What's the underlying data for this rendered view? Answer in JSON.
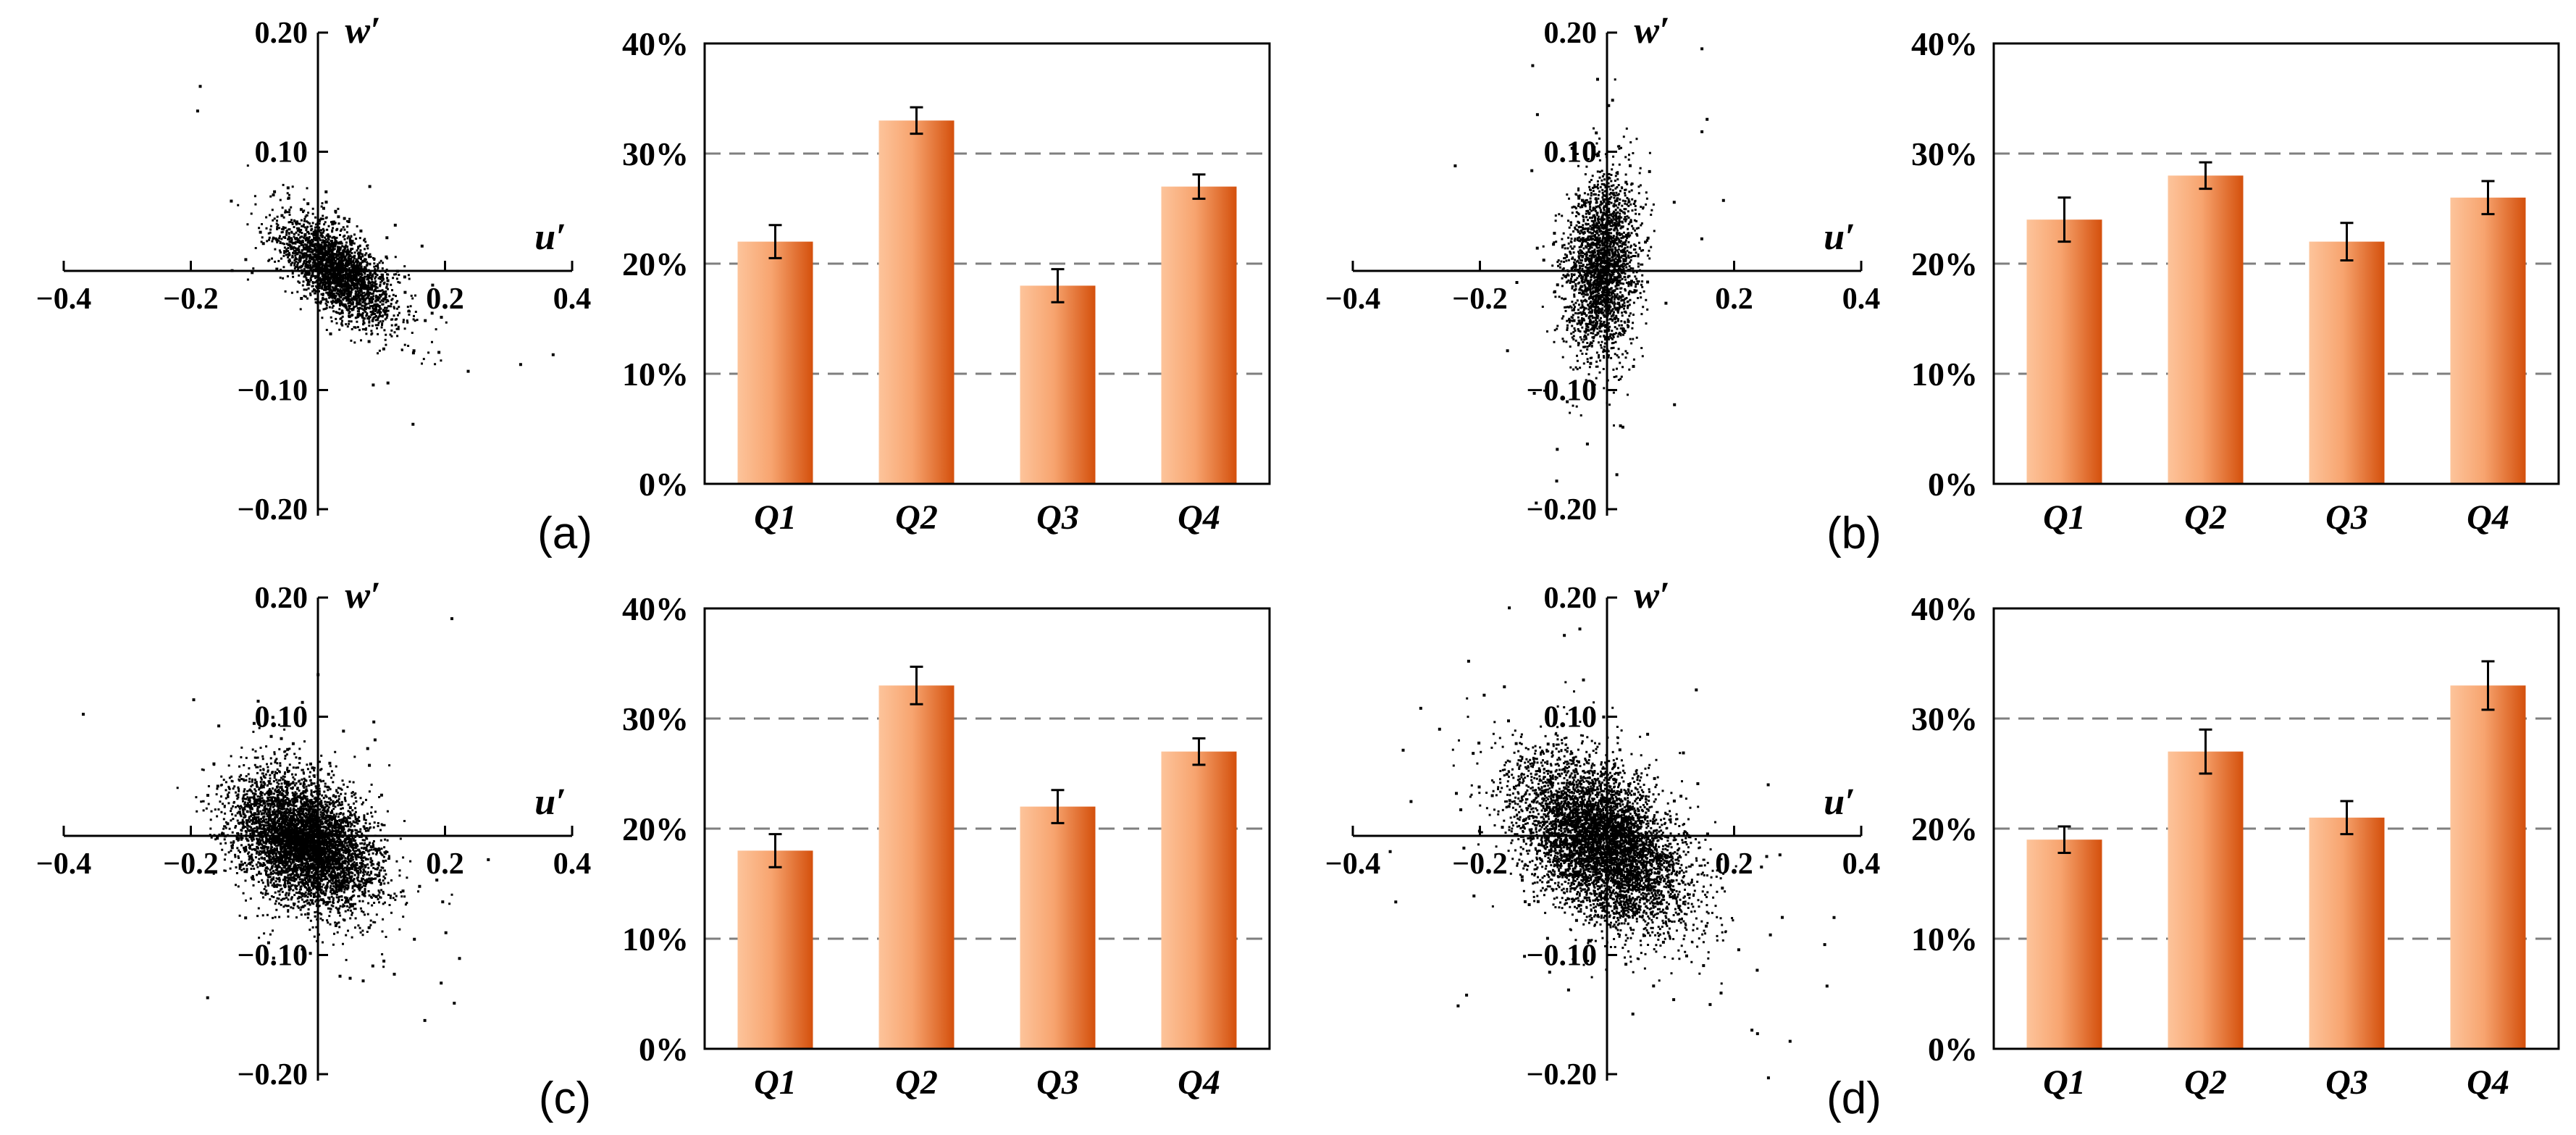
{
  "figure": {
    "colors": {
      "bar_light": "#FDC49B",
      "bar_dark": "#D4500C",
      "grid": "#7f7f7f",
      "ink": "#000000"
    }
  },
  "chart_data": [
    {
      "panel": "(a)",
      "scatter": {
        "type": "scatter",
        "xlabel": "u′",
        "ylabel": "w′",
        "xlim": [
          -0.4,
          0.4
        ],
        "ylim": [
          -0.2,
          0.2
        ],
        "x_ticks": [
          -0.4,
          -0.2,
          0.2,
          0.4
        ],
        "x_tick_labels": [
          "−0.4",
          "−0.2",
          "0.2",
          "0.4"
        ],
        "y_ticks": [
          0.2,
          0.1,
          -0.1,
          -0.2
        ],
        "y_tick_labels": [
          "0.20",
          "0.10",
          "−0.10",
          "−0.20"
        ],
        "cloud": {
          "n": 2600,
          "mean": [
            0.03,
            0.0
          ],
          "std": [
            0.045,
            0.022
          ],
          "corr": -0.65,
          "outliers": 70
        }
      },
      "bars": {
        "type": "bar",
        "categories": [
          "Q1",
          "Q2",
          "Q3",
          "Q4"
        ],
        "values": [
          22,
          33,
          18,
          27
        ],
        "errors": [
          1.5,
          1.2,
          1.5,
          1.1
        ],
        "ylim": [
          0,
          40
        ],
        "y_ticks": [
          0,
          10,
          20,
          30,
          40
        ],
        "y_tick_labels": [
          "0%",
          "10%",
          "20%",
          "30%",
          "40%"
        ],
        "gridlines": [
          10,
          20,
          30
        ]
      }
    },
    {
      "panel": "(b)",
      "scatter": {
        "type": "scatter",
        "xlabel": "u′",
        "ylabel": "w′",
        "xlim": [
          -0.4,
          0.4
        ],
        "ylim": [
          -0.2,
          0.2
        ],
        "x_ticks": [
          -0.4,
          -0.2,
          0.2,
          0.4
        ],
        "x_tick_labels": [
          "−0.4",
          "−0.2",
          "0.2",
          "0.4"
        ],
        "y_ticks": [
          0.2,
          0.1,
          -0.1,
          -0.2
        ],
        "y_tick_labels": [
          "0.20",
          "0.10",
          "−0.10",
          "−0.20"
        ],
        "cloud": {
          "n": 2400,
          "mean": [
            -0.01,
            0.005
          ],
          "std": [
            0.028,
            0.038
          ],
          "corr": 0.15,
          "outliers": 60
        }
      },
      "bars": {
        "type": "bar",
        "categories": [
          "Q1",
          "Q2",
          "Q3",
          "Q4"
        ],
        "values": [
          24,
          28,
          22,
          26
        ],
        "errors": [
          2,
          1.2,
          1.7,
          1.5
        ],
        "ylim": [
          0,
          40
        ],
        "y_ticks": [
          0,
          10,
          20,
          30,
          40
        ],
        "y_tick_labels": [
          "0%",
          "10%",
          "20%",
          "30%",
          "40%"
        ],
        "gridlines": [
          10,
          20,
          30
        ]
      }
    },
    {
      "panel": "(c)",
      "scatter": {
        "type": "scatter",
        "xlabel": "u′",
        "ylabel": "w′",
        "xlim": [
          -0.4,
          0.4
        ],
        "ylim": [
          -0.2,
          0.2
        ],
        "x_ticks": [
          -0.4,
          -0.2,
          0.2,
          0.4
        ],
        "x_tick_labels": [
          "−0.4",
          "−0.2",
          "0.2",
          "0.4"
        ],
        "y_ticks": [
          0.2,
          0.1,
          -0.1,
          -0.2
        ],
        "y_tick_labels": [
          "0.20",
          "0.10",
          "−0.10",
          "−0.20"
        ],
        "cloud": {
          "n": 5200,
          "mean": [
            -0.02,
            -0.005
          ],
          "std": [
            0.055,
            0.028
          ],
          "corr": -0.35,
          "outliers": 80
        }
      },
      "bars": {
        "type": "bar",
        "categories": [
          "Q1",
          "Q2",
          "Q3",
          "Q4"
        ],
        "values": [
          18,
          33,
          22,
          27
        ],
        "errors": [
          1.5,
          1.7,
          1.5,
          1.2
        ],
        "ylim": [
          0,
          40
        ],
        "y_ticks": [
          0,
          10,
          20,
          30,
          40
        ],
        "y_tick_labels": [
          "0%",
          "10%",
          "20%",
          "30%",
          "40%"
        ],
        "gridlines": [
          10,
          20,
          30
        ]
      }
    },
    {
      "panel": "(d)",
      "scatter": {
        "type": "scatter",
        "xlabel": "u′",
        "ylabel": "w′",
        "xlim": [
          -0.4,
          0.4
        ],
        "ylim": [
          -0.2,
          0.2
        ],
        "x_ticks": [
          -0.4,
          -0.2,
          0.2,
          0.4
        ],
        "x_tick_labels": [
          "−0.4",
          "−0.2",
          "0.2",
          "0.4"
        ],
        "y_ticks": [
          0.2,
          0.1,
          -0.1,
          -0.2
        ],
        "y_tick_labels": [
          "0.20",
          "0.10",
          "−0.10",
          "−0.20"
        ],
        "cloud": {
          "n": 5600,
          "mean": [
            -0.01,
            -0.005
          ],
          "std": [
            0.065,
            0.035
          ],
          "corr": -0.45,
          "outliers": 120
        }
      },
      "bars": {
        "type": "bar",
        "categories": [
          "Q1",
          "Q2",
          "Q3",
          "Q4"
        ],
        "values": [
          19,
          27,
          21,
          33
        ],
        "errors": [
          1.2,
          2,
          1.5,
          2.2
        ],
        "ylim": [
          0,
          40
        ],
        "y_ticks": [
          0,
          10,
          20,
          30,
          40
        ],
        "y_tick_labels": [
          "0%",
          "10%",
          "20%",
          "30%",
          "40%"
        ],
        "gridlines": [
          10,
          20,
          30
        ]
      }
    }
  ]
}
